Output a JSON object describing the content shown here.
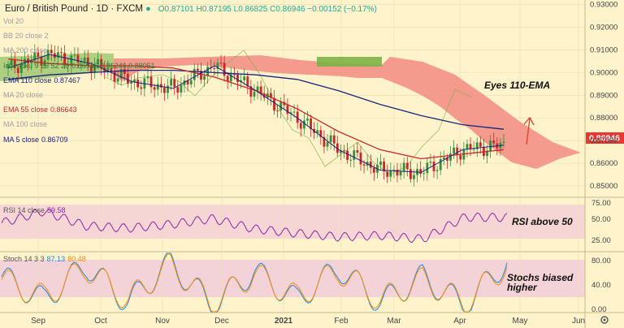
{
  "header": {
    "symbol": "Euro / British Pound · 1D · FXCM",
    "ohlc": "O0.87101 H0.87195 L0.86825 C0.86946 −0.00152 (−0.17%)"
  },
  "indicators": [
    {
      "label": "Vol 20",
      "color": "#9e9e9e"
    },
    {
      "label": "BB 20 close 2",
      "color": "#9e9e9e"
    },
    {
      "label": "MA 200 close",
      "color": "#9e9e9e"
    },
    {
      "label": "Ichimoku 9 26 52 26",
      "value": "0.86946  0.86246  0.88051",
      "color": "#2e7d32"
    },
    {
      "label": "EMA 110 close",
      "value": "0.87467",
      "color": "#1a237e"
    },
    {
      "label": "MA 20 close",
      "color": "#9e9e9e"
    },
    {
      "label": "EMA 55 close",
      "value": "0.86643",
      "color": "#c62828"
    },
    {
      "label": "MA 100 close",
      "color": "#9e9e9e"
    },
    {
      "label": "MA 5 close",
      "value": "0.86709",
      "color": "#1a237e"
    }
  ],
  "annotations": {
    "main": "Eyes 110-EMA",
    "rsi": "RSI above 50",
    "stoch": "Stochs biased higher"
  },
  "price_tag": "0.86946",
  "rsi_panel": {
    "label": "RSI 14 close",
    "value": "59.58"
  },
  "stoch_panel": {
    "label": "Stoch 14 3 3",
    "k": "87.13",
    "d": "80.48"
  },
  "chart_data": [
    {
      "type": "line",
      "title": "Euro / British Pound · 1D · FXCM",
      "xlabel": "",
      "ylabel": "",
      "x_ticks": [
        "Sep",
        "Oct",
        "Nov",
        "Dec",
        "2021",
        "Feb",
        "Mar",
        "Apr",
        "May",
        "Jun"
      ],
      "y_ticks": [
        "0.93000",
        "0.92000",
        "0.91000",
        "0.90000",
        "0.89000",
        "0.88000",
        "0.87000",
        "0.86000",
        "0.85000"
      ],
      "ylim": [
        0.845,
        0.932
      ],
      "series": [
        {
          "name": "EMA 110 close",
          "color": "#1a237e",
          "values": [
            0.897,
            0.899,
            0.9,
            0.901,
            0.901,
            0.9,
            0.899,
            0.897,
            0.892,
            0.886,
            0.881,
            0.877,
            0.875
          ]
        },
        {
          "name": "EMA 55 close",
          "color": "#c62828",
          "values": [
            0.906,
            0.904,
            0.903,
            0.903,
            0.902,
            0.898,
            0.892,
            0.884,
            0.874,
            0.866,
            0.862,
            0.864,
            0.866
          ]
        },
        {
          "name": "MA 5 close",
          "color": "#1a237e",
          "values": [
            0.902,
            0.908,
            0.904,
            0.896,
            0.893,
            0.903,
            0.892,
            0.88,
            0.866,
            0.857,
            0.856,
            0.866,
            0.868
          ]
        }
      ],
      "price": {
        "close": 0.86946
      },
      "annotations": [
        "Eyes 110-EMA"
      ]
    },
    {
      "type": "line",
      "title": "RSI 14 close",
      "y_ticks": [
        "75.00",
        "50.00",
        "25.00"
      ],
      "ylim": [
        15,
        85
      ],
      "series": [
        {
          "name": "RSI 14 close",
          "color": "#8e24aa",
          "values": [
            52,
            68,
            48,
            45,
            50,
            58,
            44,
            38,
            33,
            35,
            30,
            60,
            59.58
          ]
        }
      ],
      "annotations": [
        "RSI above 50"
      ]
    },
    {
      "type": "line",
      "title": "Stoch 14 3 3",
      "y_ticks": [
        "80.00",
        "40.00",
        "0.00"
      ],
      "ylim": [
        0,
        100
      ],
      "series": [
        {
          "name": "%K",
          "color": "#1e88e5",
          "values": [
            60,
            20,
            80,
            15,
            85,
            10,
            70,
            20,
            75,
            15,
            60,
            10,
            87.13
          ]
        },
        {
          "name": "%D",
          "color": "#fb8c00",
          "values": [
            55,
            25,
            75,
            20,
            80,
            15,
            65,
            25,
            70,
            20,
            55,
            15,
            80.48
          ]
        }
      ],
      "annotations": [
        "Stochs biased higher"
      ]
    }
  ]
}
